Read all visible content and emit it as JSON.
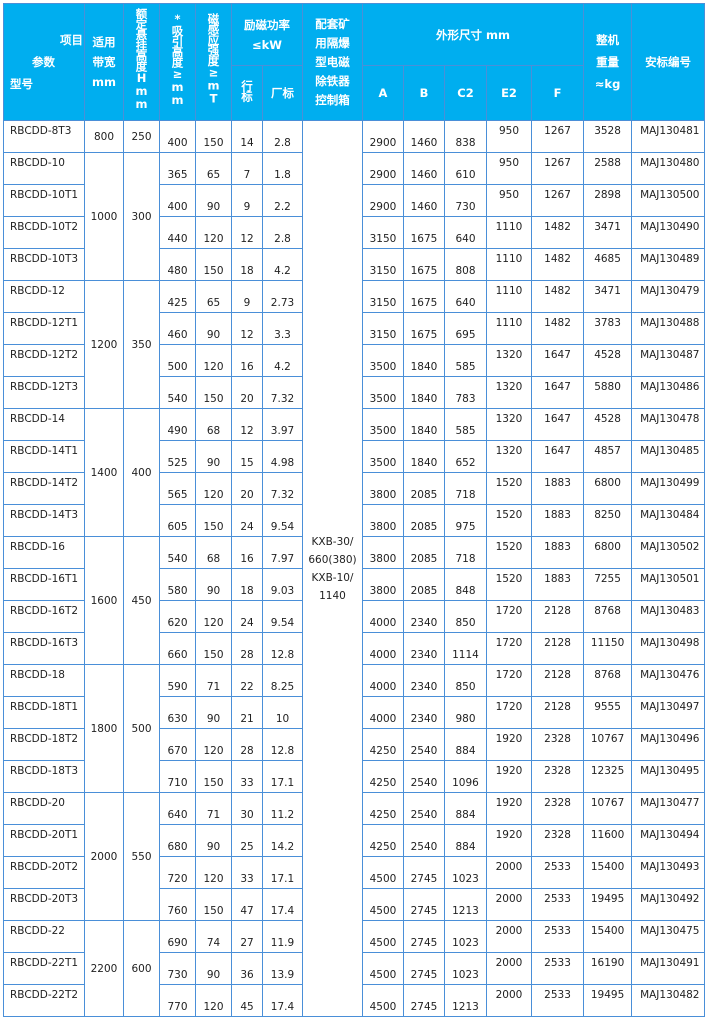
{
  "header": {
    "corner": [
      "项目",
      "参数",
      "型号"
    ],
    "belt_width": [
      "适用",
      "带宽",
      "mm"
    ],
    "hanging_height": "额定悬挂高度Hmm",
    "suction_height": "*吸引高度≥mm",
    "magnetic_strength": "磁感应强度≥mT",
    "power": [
      "励磁功率",
      "≤kW"
    ],
    "power_industry": "行标",
    "power_factory": "厂标",
    "control_box": [
      "配套矿",
      "用隔爆",
      "型电磁",
      "除铁器",
      "控制箱"
    ],
    "dimensions": "外形尺寸 mm",
    "dim_cols": [
      "A",
      "B",
      "C2",
      "E2",
      "F"
    ],
    "weight": [
      "整机",
      "重量",
      "≈kg"
    ],
    "safety_code": "安标编号"
  },
  "control_box_value": [
    "KXB-30/",
    "660(380)",
    "KXB-10/",
    "1140"
  ],
  "groups": [
    {
      "belt": "800",
      "h": "250",
      "rows": [
        [
          "RBCDD-8T3",
          "400",
          "150",
          "14",
          "2.8",
          "2900",
          "1460",
          "838",
          "950",
          "1267",
          "3528",
          "MAJ130481"
        ]
      ]
    },
    {
      "belt": "1000",
      "h": "300",
      "rows": [
        [
          "RBCDD-10",
          "365",
          "65",
          "7",
          "1.8",
          "2900",
          "1460",
          "610",
          "950",
          "1267",
          "2588",
          "MAJ130480"
        ],
        [
          "RBCDD-10T1",
          "400",
          "90",
          "9",
          "2.2",
          "2900",
          "1460",
          "730",
          "950",
          "1267",
          "2898",
          "MAJ130500"
        ],
        [
          "RBCDD-10T2",
          "440",
          "120",
          "12",
          "2.8",
          "3150",
          "1675",
          "640",
          "1110",
          "1482",
          "3471",
          "MAJ130490"
        ],
        [
          "RBCDD-10T3",
          "480",
          "150",
          "18",
          "4.2",
          "3150",
          "1675",
          "808",
          "1110",
          "1482",
          "4685",
          "MAJ130489"
        ]
      ]
    },
    {
      "belt": "1200",
      "h": "350",
      "rows": [
        [
          "RBCDD-12",
          "425",
          "65",
          "9",
          "2.73",
          "3150",
          "1675",
          "640",
          "1110",
          "1482",
          "3471",
          "MAJ130479"
        ],
        [
          "RBCDD-12T1",
          "460",
          "90",
          "12",
          "3.3",
          "3150",
          "1675",
          "695",
          "1110",
          "1482",
          "3783",
          "MAJ130488"
        ],
        [
          "RBCDD-12T2",
          "500",
          "120",
          "16",
          "4.2",
          "3500",
          "1840",
          "585",
          "1320",
          "1647",
          "4528",
          "MAJ130487"
        ],
        [
          "RBCDD-12T3",
          "540",
          "150",
          "20",
          "7.32",
          "3500",
          "1840",
          "783",
          "1320",
          "1647",
          "5880",
          "MAJ130486"
        ]
      ]
    },
    {
      "belt": "1400",
      "h": "400",
      "rows": [
        [
          "RBCDD-14",
          "490",
          "68",
          "12",
          "3.97",
          "3500",
          "1840",
          "585",
          "1320",
          "1647",
          "4528",
          "MAJ130478"
        ],
        [
          "RBCDD-14T1",
          "525",
          "90",
          "15",
          "4.98",
          "3500",
          "1840",
          "652",
          "1320",
          "1647",
          "4857",
          "MAJ130485"
        ],
        [
          "RBCDD-14T2",
          "565",
          "120",
          "20",
          "7.32",
          "3800",
          "2085",
          "718",
          "1520",
          "1883",
          "6800",
          "MAJ130499"
        ],
        [
          "RBCDD-14T3",
          "605",
          "150",
          "24",
          "9.54",
          "3800",
          "2085",
          "975",
          "1520",
          "1883",
          "8250",
          "MAJ130484"
        ]
      ]
    },
    {
      "belt": "1600",
      "h": "450",
      "rows": [
        [
          "RBCDD-16",
          "540",
          "68",
          "16",
          "7.97",
          "3800",
          "2085",
          "718",
          "1520",
          "1883",
          "6800",
          "MAJ130502"
        ],
        [
          "RBCDD-16T1",
          "580",
          "90",
          "18",
          "9.03",
          "3800",
          "2085",
          "848",
          "1520",
          "1883",
          "7255",
          "MAJ130501"
        ],
        [
          "RBCDD-16T2",
          "620",
          "120",
          "24",
          "9.54",
          "4000",
          "2340",
          "850",
          "1720",
          "2128",
          "8768",
          "MAJ130483"
        ],
        [
          "RBCDD-16T3",
          "660",
          "150",
          "28",
          "12.8",
          "4000",
          "2340",
          "1114",
          "1720",
          "2128",
          "11150",
          "MAJ130498"
        ]
      ]
    },
    {
      "belt": "1800",
      "h": "500",
      "rows": [
        [
          "RBCDD-18",
          "590",
          "71",
          "22",
          "8.25",
          "4000",
          "2340",
          "850",
          "1720",
          "2128",
          "8768",
          "MAJ130476"
        ],
        [
          "RBCDD-18T1",
          "630",
          "90",
          "21",
          "10",
          "4000",
          "2340",
          "980",
          "1720",
          "2128",
          "9555",
          "MAJ130497"
        ],
        [
          "RBCDD-18T2",
          "670",
          "120",
          "28",
          "12.8",
          "4250",
          "2540",
          "884",
          "1920",
          "2328",
          "10767",
          "MAJ130496"
        ],
        [
          "RBCDD-18T3",
          "710",
          "150",
          "33",
          "17.1",
          "4250",
          "2540",
          "1096",
          "1920",
          "2328",
          "12325",
          "MAJ130495"
        ]
      ]
    },
    {
      "belt": "2000",
      "h": "550",
      "rows": [
        [
          "RBCDD-20",
          "640",
          "71",
          "30",
          "11.2",
          "4250",
          "2540",
          "884",
          "1920",
          "2328",
          "10767",
          "MAJ130477"
        ],
        [
          "RBCDD-20T1",
          "680",
          "90",
          "25",
          "14.2",
          "4250",
          "2540",
          "884",
          "1920",
          "2328",
          "11600",
          "MAJ130494"
        ],
        [
          "RBCDD-20T2",
          "720",
          "120",
          "33",
          "17.1",
          "4500",
          "2745",
          "1023",
          "2000",
          "2533",
          "15400",
          "MAJ130493"
        ],
        [
          "RBCDD-20T3",
          "760",
          "150",
          "47",
          "17.4",
          "4500",
          "2745",
          "1213",
          "2000",
          "2533",
          "19495",
          "MAJ130492"
        ]
      ]
    },
    {
      "belt": "2200",
      "h": "600",
      "rows": [
        [
          "RBCDD-22",
          "690",
          "74",
          "27",
          "11.9",
          "4500",
          "2745",
          "1023",
          "2000",
          "2533",
          "15400",
          "MAJ130475"
        ],
        [
          "RBCDD-22T1",
          "730",
          "90",
          "36",
          "13.9",
          "4500",
          "2745",
          "1023",
          "2000",
          "2533",
          "16190",
          "MAJ130491"
        ],
        [
          "RBCDD-22T2",
          "770",
          "120",
          "45",
          "17.4",
          "4500",
          "2745",
          "1213",
          "2000",
          "2533",
          "19495",
          "MAJ130482"
        ]
      ]
    }
  ]
}
